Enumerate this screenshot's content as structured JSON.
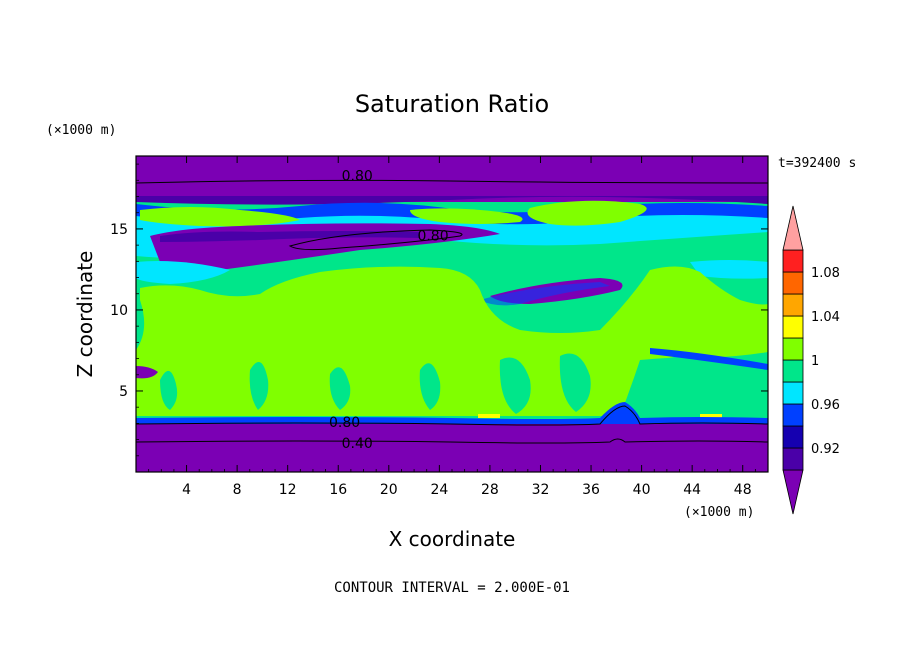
{
  "chart_data": {
    "type": "heatmap",
    "title": "Saturation Ratio",
    "xlabel": "X coordinate",
    "ylabel": "Z coordinate",
    "x_unit": "(×1000 m)",
    "y_unit": "(×1000 m)",
    "time_label": "t=392400 s",
    "footer": "CONTOUR INTERVAL = 2.000E-01",
    "xlim": [
      0,
      50
    ],
    "ylim": [
      0,
      19.5
    ],
    "x_ticks": [
      4,
      8,
      12,
      16,
      20,
      24,
      28,
      32,
      36,
      40,
      44,
      48
    ],
    "y_ticks": [
      5,
      10,
      15
    ],
    "colorbar": {
      "levels": [
        {
          "upper": 0.9,
          "color": "#7b00b4"
        },
        {
          "upper": 0.92,
          "color": "#4a00a8"
        },
        {
          "upper": 0.94,
          "color": "#1500b0"
        },
        {
          "upper": 0.96,
          "color": "#0040ff"
        },
        {
          "upper": 0.98,
          "color": "#00e6ff"
        },
        {
          "upper": 1.0,
          "color": "#00e68a"
        },
        {
          "upper": 1.02,
          "color": "#80ff00"
        },
        {
          "upper": 1.04,
          "color": "#ffff00"
        },
        {
          "upper": 1.06,
          "color": "#ffa600"
        },
        {
          "upper": 1.08,
          "color": "#ff6600"
        },
        {
          "upper": 1.1,
          "color": "#ff2020"
        },
        {
          "upper": 1.12,
          "color": "#ffa0a0"
        }
      ],
      "tick_labels": [
        "0.92",
        "0.96",
        "1",
        "1.04",
        "1.08"
      ]
    },
    "contour_labels": [
      {
        "text": "0.80",
        "x": 17.5,
        "y": 18.3
      },
      {
        "text": "0.80",
        "x": 23.5,
        "y": 14.6
      },
      {
        "text": "0.80",
        "x": 16.5,
        "y": 3.1
      },
      {
        "text": "0.40",
        "x": 17.5,
        "y": 1.8
      }
    ]
  }
}
